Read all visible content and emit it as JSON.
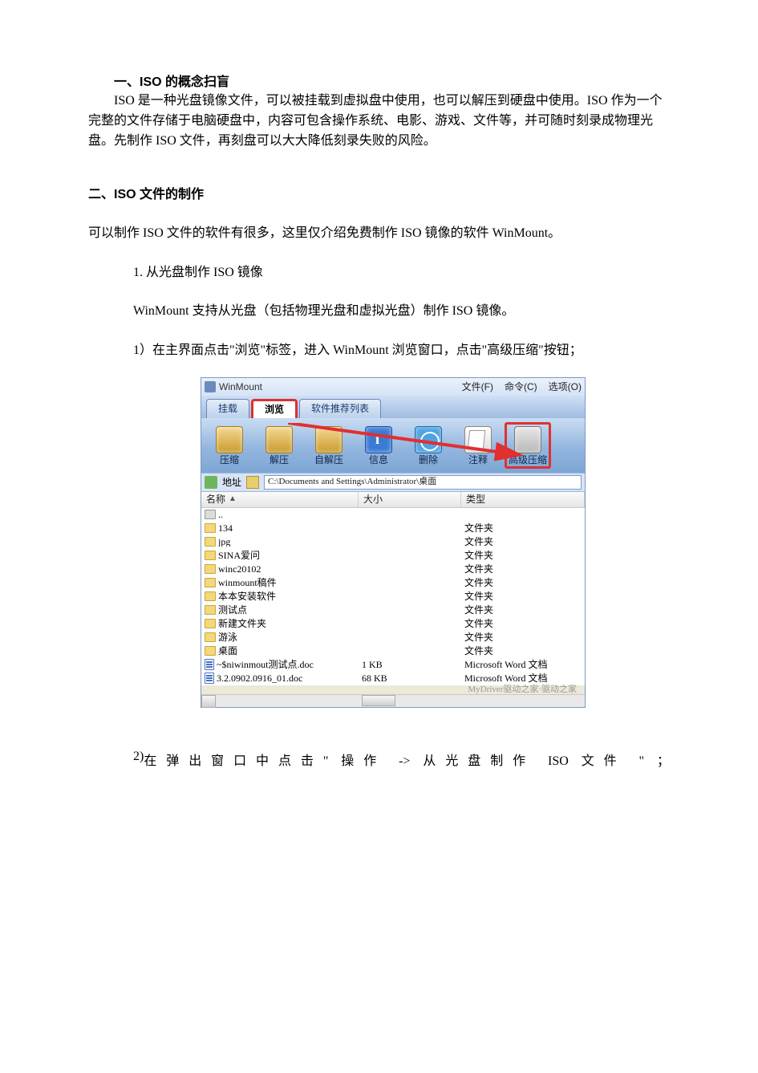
{
  "section1": {
    "title": "一、ISO 的概念扫盲",
    "body": "ISO 是一种光盘镜像文件，可以被挂载到虚拟盘中使用，也可以解压到硬盘中使用。ISO 作为一个完整的文件存储于电脑硬盘中，内容可包含操作系统、电影、游戏、文件等，并可随时刻录成物理光盘。先制作 ISO 文件，再刻盘可以大大降低刻录失败的风险。"
  },
  "section2": {
    "title": "二、ISO 文件的制作",
    "intro": "可以制作 ISO 文件的软件有很多，这里仅介绍免费制作 ISO 镜像的软件 WinMount。",
    "sub1": "1. 从光盘制作 ISO 镜像",
    "sub1_body": "WinMount 支持从光盘（包括物理光盘和虚拟光盘）制作 ISO 镜像。",
    "step1": "1）在主界面点击\"浏览\"标签，进入 WinMount 浏览窗口，点击\"高级压缩\"按钮；",
    "step2_lead": "2)  ",
    "step2_rest": "在弹出窗口中点击\" 操作  -> 从光盘制作  ISO  文件 \" ；"
  },
  "wm": {
    "app_title": "WinMount",
    "menus": {
      "file": "文件(F)",
      "cmd": "命令(C)",
      "opt": "选项(O)"
    },
    "tabs": {
      "mount": "挂载",
      "browse": "浏览",
      "soft": "软件推荐列表"
    },
    "toolbar": {
      "compress": "压缩",
      "extract": "解压",
      "self": "自解压",
      "info": "信息",
      "del": "删除",
      "note": "注释",
      "adv": "高级压缩"
    },
    "addr_label": "地址",
    "addr_path": "C:\\Documents and Settings\\Administrator\\桌面",
    "cols": {
      "name": "名称",
      "size": "大小",
      "type": "类型"
    },
    "rows": [
      {
        "icon": "up",
        "name": "..",
        "size": "",
        "type": ""
      },
      {
        "icon": "dir",
        "name": "134",
        "size": "",
        "type": "文件夹"
      },
      {
        "icon": "dir",
        "name": "jpg",
        "size": "",
        "type": "文件夹"
      },
      {
        "icon": "dir",
        "name": "SINA爱问",
        "size": "",
        "type": "文件夹"
      },
      {
        "icon": "dir",
        "name": "winc20102",
        "size": "",
        "type": "文件夹"
      },
      {
        "icon": "dir",
        "name": "winmount稿件",
        "size": "",
        "type": "文件夹"
      },
      {
        "icon": "dir",
        "name": "本本安装软件",
        "size": "",
        "type": "文件夹"
      },
      {
        "icon": "dir",
        "name": "测试点",
        "size": "",
        "type": "文件夹"
      },
      {
        "icon": "dir",
        "name": "新建文件夹",
        "size": "",
        "type": "文件夹"
      },
      {
        "icon": "dir",
        "name": "游泳",
        "size": "",
        "type": "文件夹"
      },
      {
        "icon": "dir",
        "name": "桌面",
        "size": "",
        "type": "文件夹"
      },
      {
        "icon": "doc",
        "name": "~$niwinmout测试点.doc",
        "size": "1 KB",
        "type": "Microsoft Word 文档"
      },
      {
        "icon": "doc",
        "name": "3.2.0902.0916_01.doc",
        "size": "68 KB",
        "type": "Microsoft Word 文档"
      }
    ],
    "watermark": "MyDriver驱动之家·驱动之家"
  },
  "colors": {
    "highlight_red": "#e03030",
    "toolbar_grad_top": "#c9ddf3",
    "toolbar_grad_bot": "#7da6d4",
    "xp_beige": "#ece9d8",
    "border_blue": "#7d99c8"
  }
}
